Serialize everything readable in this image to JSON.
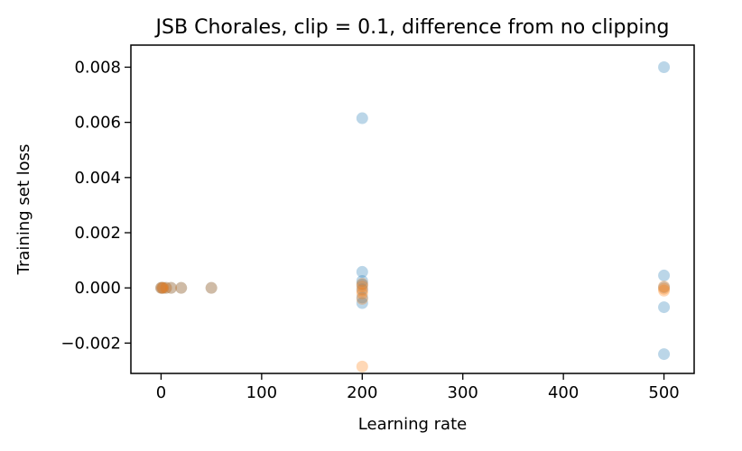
{
  "chart_data": {
    "type": "scatter",
    "title": "JSB Chorales, clip = 0.1, difference from no clipping",
    "xlabel": "Learning rate",
    "ylabel": "Training set loss",
    "xlim": [
      -30,
      530
    ],
    "ylim": [
      -0.0031,
      0.0088
    ],
    "xticks": [
      0,
      100,
      200,
      300,
      400,
      500
    ],
    "xtick_labels": [
      "0",
      "100",
      "200",
      "300",
      "400",
      "500"
    ],
    "yticks": [
      -0.002,
      0.0,
      0.002,
      0.004,
      0.006,
      0.008
    ],
    "ytick_labels": [
      "−0.002",
      "0.000",
      "0.002",
      "0.004",
      "0.006",
      "0.008"
    ],
    "grid": false,
    "series": [
      {
        "color": "#1f77b4",
        "opacity": 0.3,
        "points": [
          {
            "x": 0,
            "y": 0.0
          },
          {
            "x": 1,
            "y": 0.0
          },
          {
            "x": 2,
            "y": 0.0
          },
          {
            "x": 5,
            "y": 0.0
          },
          {
            "x": 10,
            "y": 0.0
          },
          {
            "x": 20,
            "y": 0.0
          },
          {
            "x": 50,
            "y": 0.0
          },
          {
            "x": 200,
            "y": 0.00615
          },
          {
            "x": 200,
            "y": 0.00058
          },
          {
            "x": 200,
            "y": 0.00025
          },
          {
            "x": 200,
            "y": 0.00012
          },
          {
            "x": 200,
            "y": -5e-05
          },
          {
            "x": 200,
            "y": -0.00035
          },
          {
            "x": 200,
            "y": -0.00055
          },
          {
            "x": 500,
            "y": 0.008
          },
          {
            "x": 500,
            "y": 0.00045
          },
          {
            "x": 500,
            "y": 2e-05
          },
          {
            "x": 500,
            "y": -0.0007
          },
          {
            "x": 500,
            "y": -0.0024
          }
        ]
      },
      {
        "color": "#ff7f0e",
        "opacity": 0.3,
        "points": [
          {
            "x": 0,
            "y": 0.0
          },
          {
            "x": 1,
            "y": 0.0
          },
          {
            "x": 2,
            "y": 0.0
          },
          {
            "x": 5,
            "y": 0.0
          },
          {
            "x": 10,
            "y": 0.0
          },
          {
            "x": 20,
            "y": 0.0
          },
          {
            "x": 50,
            "y": 0.0
          },
          {
            "x": 200,
            "y": 0.00015
          },
          {
            "x": 200,
            "y": 5e-05
          },
          {
            "x": 200,
            "y": -0.0001
          },
          {
            "x": 200,
            "y": -0.0002
          },
          {
            "x": 200,
            "y": -0.0004
          },
          {
            "x": 200,
            "y": -0.00285
          },
          {
            "x": 500,
            "y": 5e-05
          },
          {
            "x": 500,
            "y": -3e-05
          },
          {
            "x": 500,
            "y": -0.0001
          }
        ]
      }
    ]
  }
}
